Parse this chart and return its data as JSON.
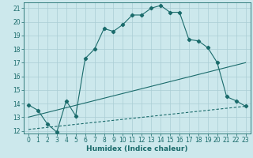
{
  "title": "",
  "xlabel": "Humidex (Indice chaleur)",
  "bg_color": "#cce8ec",
  "line_color": "#1a6b6b",
  "grid_color": "#aacdd4",
  "xlim": [
    -0.5,
    23.5
  ],
  "ylim": [
    11.8,
    21.4
  ],
  "xticks": [
    0,
    1,
    2,
    3,
    4,
    5,
    6,
    7,
    8,
    9,
    10,
    11,
    12,
    13,
    14,
    15,
    16,
    17,
    18,
    19,
    20,
    21,
    22,
    23
  ],
  "yticks": [
    12,
    13,
    14,
    15,
    16,
    17,
    18,
    19,
    20,
    21
  ],
  "line1_x": [
    0,
    1,
    2,
    3,
    4,
    5,
    6,
    7,
    8,
    9,
    10,
    11,
    12,
    13,
    14,
    15,
    16,
    17,
    18,
    19,
    20,
    21,
    22,
    23
  ],
  "line1_y": [
    13.9,
    13.5,
    12.5,
    11.9,
    14.2,
    13.1,
    17.3,
    18.0,
    19.5,
    19.3,
    19.8,
    20.5,
    20.5,
    21.0,
    21.2,
    20.7,
    20.7,
    18.7,
    18.6,
    18.1,
    17.0,
    14.5,
    14.2,
    13.8
  ],
  "line2_x": [
    0,
    23
  ],
  "line2_y": [
    13.0,
    17.0
  ],
  "line3_x": [
    0,
    23
  ],
  "line3_y": [
    12.1,
    13.8
  ],
  "tick_fontsize": 5.5,
  "xlabel_fontsize": 6.5
}
